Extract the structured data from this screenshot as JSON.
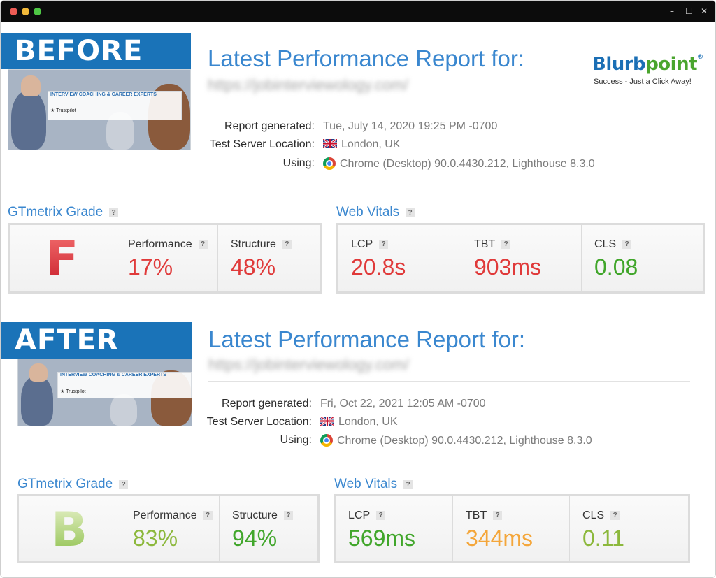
{
  "colors": {
    "accent": "#3a87cf",
    "badge": "#1a73b8",
    "bad": "#e03a3a",
    "good": "#41a62b",
    "warn": "#f4a63a",
    "ok": "#8cb83c"
  },
  "logo": {
    "name_prefix": "Blurb",
    "name_suffix": "point",
    "reg": "®",
    "tagline": "Success - Just a Click Away!"
  },
  "before": {
    "badge": "BEFORE",
    "thumb": {
      "headline": "INTERVIEW COACHING & CAREER EXPERTS",
      "trust": "★ Trustpilot"
    },
    "title": "Latest Performance Report for:",
    "url": "https://jobinterviewology.com/",
    "report_generated_label": "Report generated:",
    "report_generated": "Tue, July 14, 2020 19:25 PM -0700",
    "server_label": "Test Server Location:",
    "server": "London, UK",
    "using_label": "Using:",
    "using": "Chrome (Desktop) 90.0.4430.212, Lighthouse 8.3.0",
    "grade_title": "GTmetrix Grade",
    "grade": "F",
    "performance_label": "Performance",
    "performance": "17%",
    "structure_label": "Structure",
    "structure": "48%",
    "vitals_title": "Web Vitals",
    "lcp_label": "LCP",
    "lcp": "20.8s",
    "tbt_label": "TBT",
    "tbt": "903ms",
    "cls_label": "CLS",
    "cls": "0.08"
  },
  "after": {
    "badge": "AFTER",
    "thumb": {
      "headline": "INTERVIEW COACHING & CAREER EXPERTS",
      "trust": "★ Trustpilot"
    },
    "title": "Latest Performance Report for:",
    "url": "https://jobinterviewology.com/",
    "report_generated_label": "Report generated:",
    "report_generated": "Fri, Oct 22, 2021 12:05 AM -0700",
    "server_label": "Test Server Location:",
    "server": "London, UK",
    "using_label": "Using:",
    "using": "Chrome (Desktop) 90.0.4430.212, Lighthouse 8.3.0",
    "grade_title": "GTmetrix Grade",
    "grade": "B",
    "performance_label": "Performance",
    "performance": "83%",
    "structure_label": "Structure",
    "structure": "94%",
    "vitals_title": "Web Vitals",
    "lcp_label": "LCP",
    "lcp": "569ms",
    "tbt_label": "TBT",
    "tbt": "344ms",
    "cls_label": "CLS",
    "cls": "0.11"
  }
}
